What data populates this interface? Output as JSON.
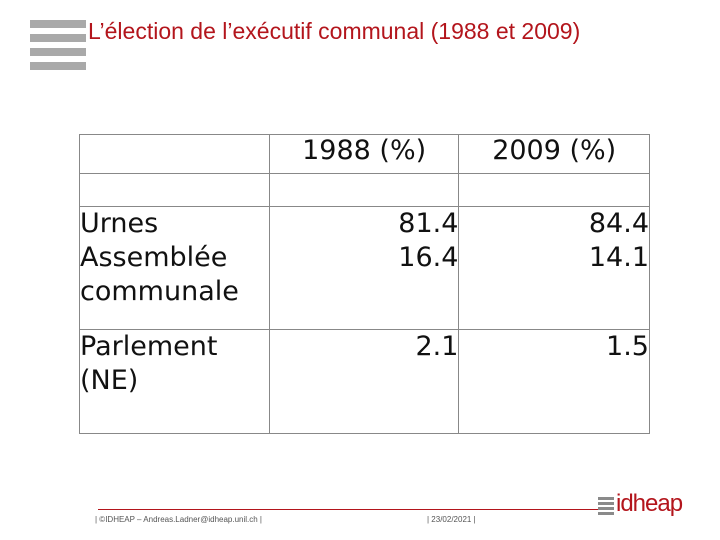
{
  "slide": {
    "title": "L’élection de l’exécutif communal (1988 et 2009)"
  },
  "table": {
    "headers": [
      "",
      "1988 (%)",
      "2009 (%)"
    ],
    "main_labels": [
      "Urnes",
      "Assemblée communale"
    ],
    "main_1988": [
      "81.4",
      "16.4"
    ],
    "main_2009": [
      "84.4",
      "14.1"
    ],
    "parl_label": "Parlement (NE)",
    "parl_1988": "2.1",
    "parl_2009": "1.5"
  },
  "footer": {
    "left": "| ©IDHEAP – Andreas.Ladner@idheap.unil.ch |",
    "date": "| 23/02/2021 |",
    "brand": "idheap"
  }
}
